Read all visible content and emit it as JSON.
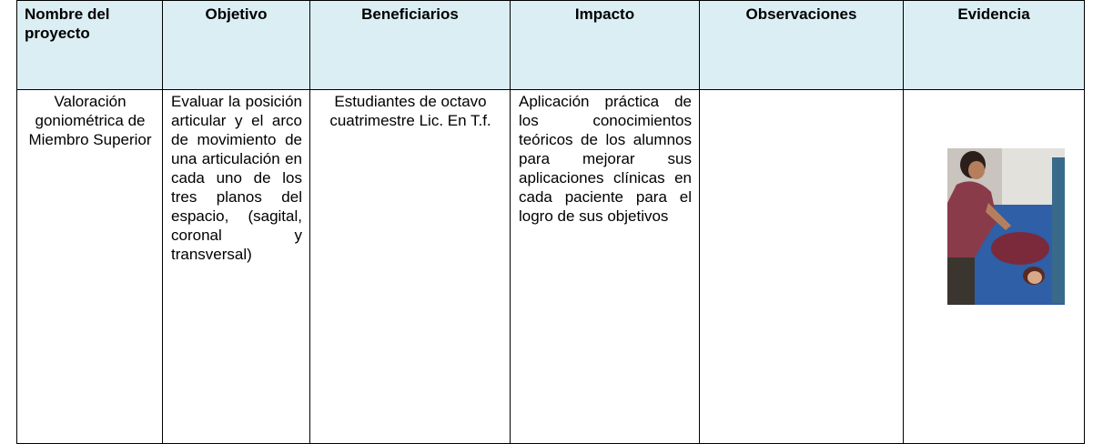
{
  "table": {
    "header": [
      "Nombre del proyecto",
      "Objetivo",
      "Beneficiarios",
      "Impacto",
      "Observaciones",
      "Evidencia"
    ],
    "rows": [
      [
        "Valoración goniométrica de Miembro Superior",
        "Evaluar la posición articular y el arco de movimiento de una articulación en cada uno de los tres planos del espacio, (sagital, coronal y transversal)",
        "Estudiantes de octavo cuatrimestre Lic. En T.f.",
        "Aplicación práctica de los conocimientos teóricos de los alumnos para mejorar sus aplicaciones clínicas en cada paciente para el logro de sus objetivos"
      ]
    ]
  }
}
